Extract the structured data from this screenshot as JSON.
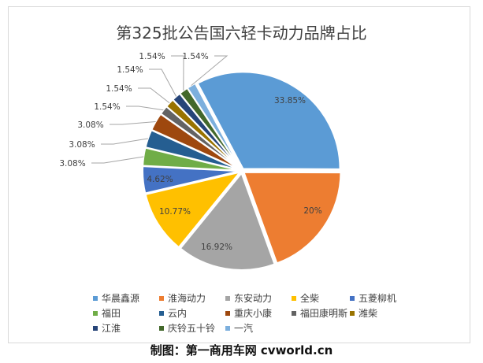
{
  "chart_data": {
    "type": "pie",
    "title": "第325批公告国六轻卡动力品牌占比",
    "categories": [
      "华晨鑫源",
      "淮海动力",
      "东安动力",
      "全柴",
      "五菱柳机",
      "福田",
      "云内",
      "重庆小康",
      "福田康明斯",
      "潍柴",
      "江淮",
      "庆铃五十铃",
      "一汽"
    ],
    "values": [
      33.85,
      20,
      16.92,
      10.77,
      4.62,
      3.08,
      3.08,
      3.08,
      1.54,
      1.54,
      1.54,
      1.54,
      1.54
    ],
    "labels": [
      "33.85%",
      "20%",
      "16.92%",
      "10.77%",
      "4.62%",
      "3.08%",
      "3.08%",
      "3.08%",
      "1.54%",
      "1.54%",
      "1.54%",
      "1.54%",
      "1.54%"
    ],
    "colors": [
      "#5B9BD5",
      "#ED7D31",
      "#A5A5A5",
      "#FFC000",
      "#4472C4",
      "#70AD47",
      "#255E91",
      "#9E480E",
      "#636363",
      "#997300",
      "#264478",
      "#43682B",
      "#7CAFDD"
    ],
    "legend_position": "bottom"
  },
  "footer": "制图：第一商用车网 cvworld.cn"
}
